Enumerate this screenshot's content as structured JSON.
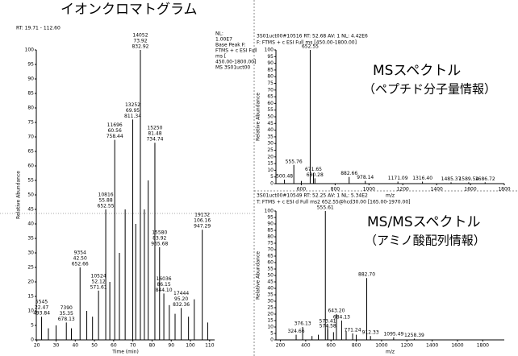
{
  "chart_data": [
    {
      "type": "stick",
      "title": "イオンクロマトグラム",
      "header": [
        "RT: 19.71 - 112.60"
      ],
      "info": [
        "NL:",
        "1.00E7",
        "Base Peak F:",
        "FTMS + c ESI Full",
        "ms [",
        "450.00-1800.00]",
        "MS 3S01uct00"
      ],
      "xlabel": "Time (min)",
      "ylabel": "Relative Abundance",
      "xlim": [
        19.71,
        112.6
      ],
      "xticks": [
        20,
        30,
        40,
        50,
        60,
        70,
        80,
        90,
        100,
        110
      ],
      "ylim": [
        0,
        100
      ],
      "yticks": [
        0,
        5,
        10,
        15,
        20,
        25,
        30,
        35,
        40,
        45,
        50,
        55,
        60,
        65,
        70,
        75,
        80,
        85,
        90,
        95,
        100
      ],
      "series": [
        {
          "color": "#000000",
          "x": [
            22.47,
            26,
            30,
            35.35,
            38,
            42.5,
            46,
            49,
            52.12,
            55.88,
            58,
            60.56,
            63,
            66,
            69.95,
            71.5,
            73.92,
            76,
            78,
            81.48,
            83.92,
            86.15,
            89,
            92,
            95.2,
            99,
            102,
            106.16,
            109
          ],
          "values": [
            8,
            4,
            5,
            6,
            4,
            25,
            10,
            8,
            17,
            45,
            20,
            69,
            30,
            45,
            76,
            40,
            100,
            45,
            55,
            68,
            32,
            16,
            12,
            9,
            11,
            8,
            14,
            38,
            6
          ],
          "value_labels": [
            [
              "5545",
              "22.47",
              "493.84"
            ],
            null,
            null,
            [
              "7390",
              "35.35",
              "678.13"
            ],
            null,
            [
              "9354",
              "42.50",
              "652.66"
            ],
            null,
            null,
            [
              "10524",
              "52.12",
              "571.61"
            ],
            [
              "10816",
              "55.88",
              "652.55"
            ],
            null,
            [
              "11696",
              "60.56",
              "758.44"
            ],
            null,
            null,
            [
              "13252",
              "69.95",
              "811.34"
            ],
            null,
            [
              "14052",
              "73.92",
              "832.92"
            ],
            null,
            null,
            [
              "15250",
              "81.48",
              "734.74"
            ],
            [
              "15580",
              "83.92",
              "965.68"
            ],
            [
              "16036",
              "86.15",
              "844.10"
            ],
            null,
            null,
            [
              "17444",
              "95.20",
              "832.36"
            ],
            null,
            null,
            [
              "19132",
              "106.16",
              "947.29"
            ],
            null
          ]
        }
      ]
    },
    {
      "type": "stick",
      "title": "MSスペクトル",
      "subtitle": "（ペプチド分子量情報）",
      "header": [
        "3S01uct00#10516 RT: 52.68 AV: 1 NL: 4.42E6",
        "F: FTMS + c ESI Full ms [450.00-1800.00]"
      ],
      "xlabel": "m/z",
      "ylabel": "Relative Abundance",
      "xlim": [
        450,
        1800
      ],
      "xticks": [
        600,
        800,
        1000,
        1200,
        1400,
        1600,
        1800
      ],
      "ylim": [
        0,
        100
      ],
      "yticks": [
        0,
        5,
        10,
        15,
        20,
        25,
        30,
        35,
        40,
        45,
        50,
        55,
        60,
        65,
        70,
        75,
        80,
        85,
        90,
        95,
        100
      ],
      "series": [
        {
          "color": "#000000",
          "x": [
            500.48,
            555.76,
            600,
            652.55,
            671.65,
            680.28,
            882.66,
            978.14,
            1171.09,
            1316.4,
            1485.37,
            1589.54,
            1686.72
          ],
          "values": [
            3,
            14,
            2,
            100,
            8,
            4,
            5,
            2,
            1.5,
            1.5,
            1,
            1,
            1
          ],
          "value_labels": [
            [
              "500.48"
            ],
            [
              "555.76"
            ],
            null,
            [
              "652.55"
            ],
            [
              "671.65"
            ],
            [
              "680.28"
            ],
            [
              "882.66"
            ],
            [
              "978.14"
            ],
            [
              "1171.09"
            ],
            [
              "1316.40"
            ],
            [
              "1485.37"
            ],
            [
              "1589.54"
            ],
            [
              "1686.72"
            ]
          ]
        }
      ]
    },
    {
      "type": "stick",
      "title": "MS/MSスペクトル",
      "subtitle": "（アミノ酸配列情報）",
      "header": [
        "3S01uct00#10549 RT: 52.25 AV: 1 NL: 5.34E2",
        "T: FTMS + c ESI d Full ms2 652.55@hcd30.00 [165.00-1970.00]"
      ],
      "xlabel": "m/z",
      "ylabel": "Relative Abundance",
      "xlim": [
        165,
        1970
      ],
      "xticks": [
        200,
        400,
        600,
        800,
        1000,
        1200,
        1400,
        1600,
        1800
      ],
      "ylim": [
        0,
        100
      ],
      "yticks": [
        0,
        5,
        10,
        15,
        20,
        25,
        30,
        35,
        40,
        45,
        50,
        55,
        60,
        65,
        70,
        75,
        80,
        85,
        90,
        95,
        100
      ],
      "series": [
        {
          "color": "#000000",
          "x": [
            324.66,
            376.13,
            450,
            500,
            555.61,
            573.41,
            574.58,
            620,
            643.2,
            684.13,
            720,
            771.24,
            800,
            882.7,
            912.33,
            1095.49,
            1258.39
          ],
          "values": [
            4,
            10,
            3,
            4,
            100,
            12,
            8,
            6,
            20,
            15,
            7,
            5,
            4,
            48,
            3,
            2,
            1
          ],
          "value_labels": [
            [
              "324.66"
            ],
            [
              "376.13"
            ],
            null,
            null,
            [
              "555.61"
            ],
            [
              "573.41"
            ],
            [
              "574.58"
            ],
            null,
            [
              "643.20"
            ],
            [
              "684.13"
            ],
            null,
            [
              "771.24"
            ],
            null,
            [
              "882.70"
            ],
            [
              "912.33"
            ],
            [
              "1095.49"
            ],
            [
              "1258.39"
            ]
          ]
        }
      ]
    }
  ]
}
